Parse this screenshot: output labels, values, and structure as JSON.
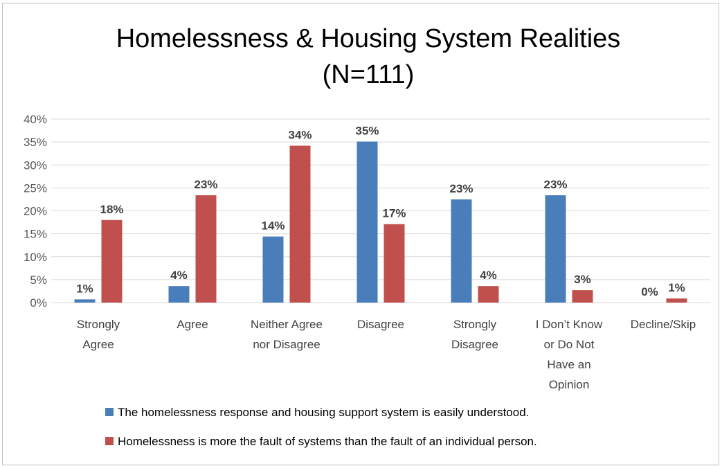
{
  "chart_data": {
    "type": "bar",
    "title_lines": [
      "Homelessness & Housing System Realities",
      "(N=111)"
    ],
    "categories": [
      [
        "Strongly",
        "Agree"
      ],
      [
        "Agree"
      ],
      [
        "Neither Agree",
        "nor Disagree"
      ],
      [
        "Disagree"
      ],
      [
        "Strongly",
        "Disagree"
      ],
      [
        "I Don’t Know",
        "or Do Not",
        "Have an",
        "Opinion"
      ],
      [
        "Decline/Skip"
      ]
    ],
    "series": [
      {
        "name": "The homelessness response and housing support system is easily understood.",
        "color": "#4a7ebb",
        "values": [
          0.7,
          3.6,
          14.4,
          35.1,
          22.5,
          23.4,
          0
        ],
        "labels": [
          "1%",
          "4%",
          "14%",
          "35%",
          "23%",
          "23%",
          "0%"
        ]
      },
      {
        "name": "Homelessness is more the fault of systems than the fault of an individual person.",
        "color": "#c0504d",
        "values": [
          18.0,
          23.4,
          34.2,
          17.1,
          3.6,
          2.7,
          0.9
        ],
        "labels": [
          "18%",
          "23%",
          "34%",
          "17%",
          "4%",
          "3%",
          "1%"
        ]
      }
    ],
    "yticks": [
      "0%",
      "5%",
      "10%",
      "15%",
      "20%",
      "25%",
      "30%",
      "35%",
      "40%"
    ],
    "ylim": [
      0,
      40
    ],
    "grid": true,
    "legend_position": "bottom"
  }
}
